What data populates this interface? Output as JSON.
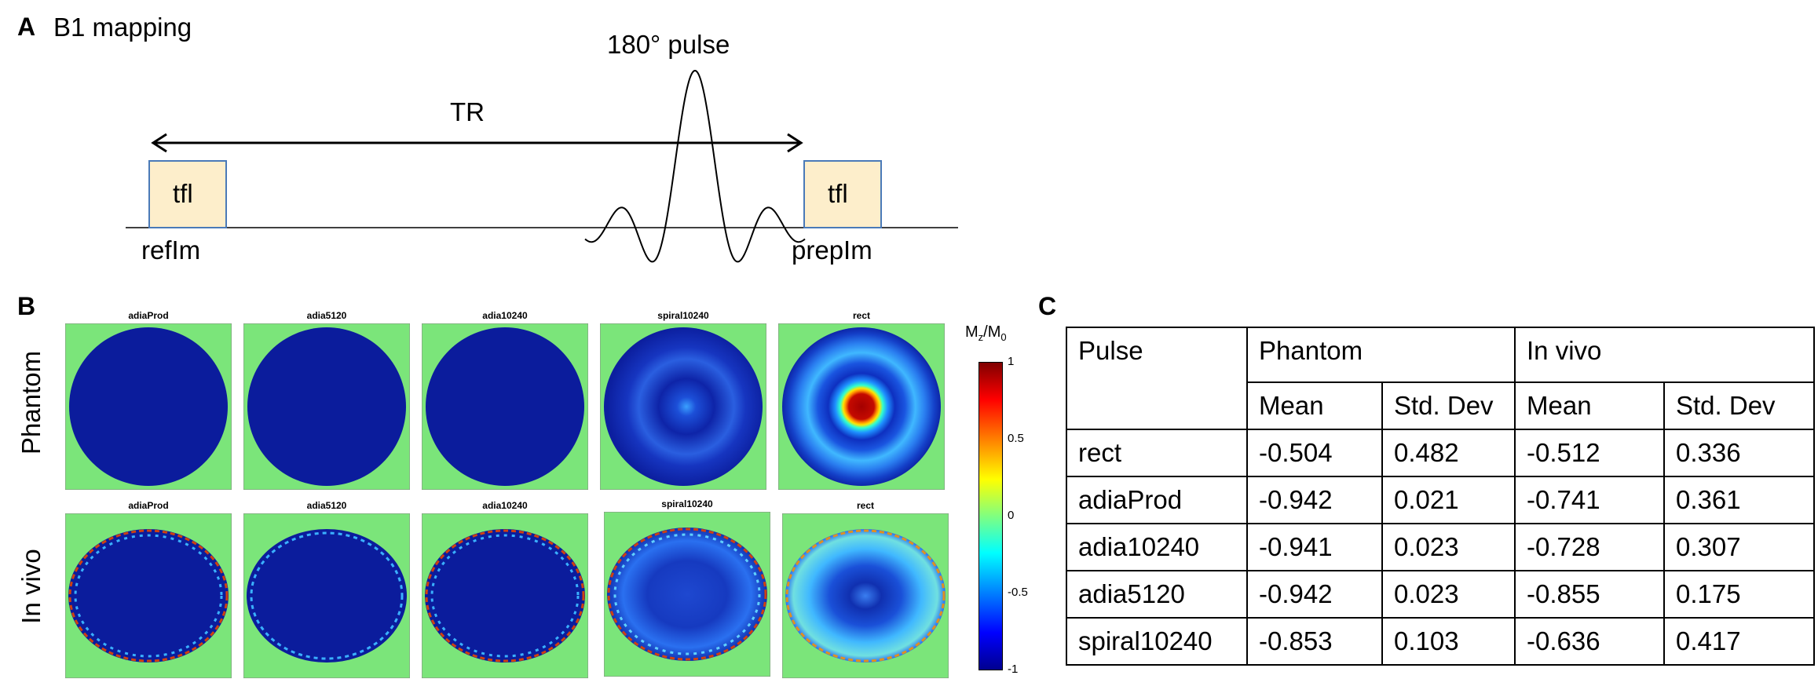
{
  "panel_a": {
    "letter": "A",
    "title": "B1 mapping",
    "pulse_label": "180° pulse",
    "tr_label": "TR",
    "block_label": "tfl",
    "ref_label": "refIm",
    "prep_label": "prepIm"
  },
  "panel_b": {
    "letter": "B",
    "row_labels": [
      "Phantom",
      "In vivo"
    ],
    "phantom_titles": [
      "adiaProd",
      "adia5120",
      "adia10240",
      "spiral10240",
      "rect"
    ],
    "invivo_titles": [
      "adiaProd",
      "adia5120",
      "adia10240",
      "spiral10240",
      "rect"
    ],
    "colorbar": {
      "label_main": "M",
      "label_sub1": "z",
      "label_sep": "/M",
      "label_sub2": "0",
      "ticks": [
        "1",
        "0.5",
        "0",
        "-0.5",
        "-1"
      ]
    }
  },
  "panel_c": {
    "letter": "C",
    "header": {
      "pulse": "Pulse",
      "phantom": "Phantom",
      "invivo": "In vivo",
      "mean": "Mean",
      "std": "Std. Dev"
    },
    "rows": [
      {
        "pulse": "rect",
        "ph_mean": "-0.504",
        "ph_std": "0.482",
        "iv_mean": "-0.512",
        "iv_std": "0.336"
      },
      {
        "pulse": "adiaProd",
        "ph_mean": "-0.942",
        "ph_std": "0.021",
        "iv_mean": "-0.741",
        "iv_std": "0.361"
      },
      {
        "pulse": "adia10240",
        "ph_mean": "-0.941",
        "ph_std": "0.023",
        "iv_mean": "-0.728",
        "iv_std": "0.307"
      },
      {
        "pulse": "adia5120",
        "ph_mean": "-0.942",
        "ph_std": "0.023",
        "iv_mean": "-0.855",
        "iv_std": "0.175"
      },
      {
        "pulse": "spiral10240",
        "ph_mean": "-0.853",
        "ph_std": "0.103",
        "iv_mean": "-0.636",
        "iv_std": "0.417"
      }
    ]
  },
  "colors": {
    "background_green": "#7be57a",
    "map_blue": "#0a1e9e",
    "block_fill": "#fdeecb",
    "block_border": "#4a7ab8"
  }
}
